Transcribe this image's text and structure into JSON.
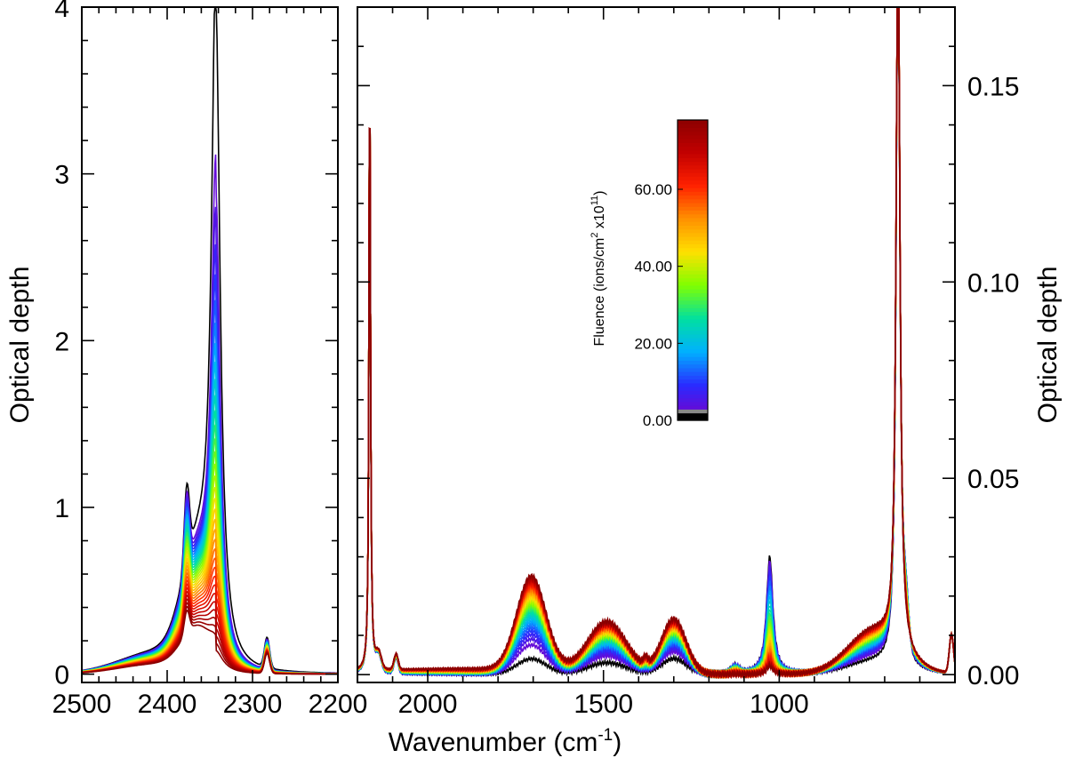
{
  "chart_data": {
    "type": "line",
    "xlabel_main": "Wavenumber (cm",
    "xlabel_sup": "-1",
    "xlabel_tail": ")",
    "ylabel_left": "Optical depth",
    "ylabel_right": "Optical depth",
    "left_panel": {
      "xlim": [
        2500,
        2200
      ],
      "ylim": [
        -0.05,
        4
      ],
      "xticks": [
        "2500",
        "2400",
        "2300",
        "2200"
      ],
      "yticks": [
        "0",
        "1",
        "2",
        "3",
        "4"
      ],
      "peaks": [
        {
          "center": 2343,
          "height_start": 3.92,
          "height_end": 0.1
        },
        {
          "center": 2283,
          "height_start": 0.18,
          "height_end": 0.12
        }
      ]
    },
    "right_panel": {
      "xlim": [
        2200,
        500
      ],
      "ylim": [
        -0.002,
        0.17
      ],
      "xticks": [
        "2000",
        "1500",
        "1000"
      ],
      "yticks": [
        "0.00",
        "0.05",
        "0.10",
        "0.15"
      ],
      "series_note": "spectra evolve with fluence from black (0) to dark red (max)"
    },
    "colorbar": {
      "title_main": "Fluence (ions/cm",
      "title_sup1": "2",
      "title_mid": " x10",
      "title_sup2": "11",
      "title_tail": ")",
      "ticks": [
        "0.00",
        "20.00",
        "40.00",
        "60.00"
      ],
      "tick_values": [
        0,
        20,
        40,
        60
      ],
      "range": [
        0,
        78
      ]
    },
    "colors": {
      "start": "#000000",
      "gradient": [
        "#7a00c8",
        "#2a2aff",
        "#00b0ff",
        "#00e0a0",
        "#80ff00",
        "#ffe000",
        "#ff9000",
        "#ff2000",
        "#c00000",
        "#8a0000"
      ]
    }
  }
}
